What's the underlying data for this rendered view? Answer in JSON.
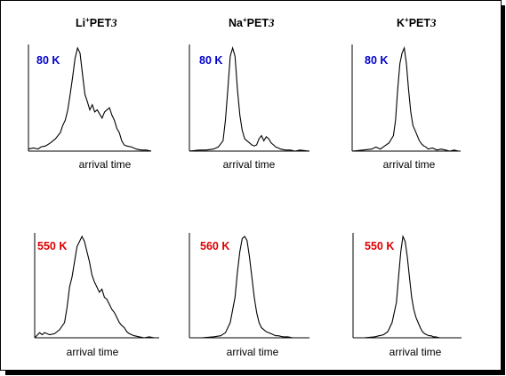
{
  "columns": [
    {
      "ion": "Li",
      "charge": "+",
      "molecule": "PET",
      "index": "3"
    },
    {
      "ion": "Na",
      "charge": "+",
      "molecule": "PET",
      "index": "3"
    },
    {
      "ion": "K",
      "charge": "+",
      "molecule": "PET",
      "index": "3"
    }
  ],
  "chart_data": [
    {
      "type": "line",
      "xlabel": "arrival time",
      "annotation": "80 K",
      "annotation_color": "#0000cc",
      "series": [
        {
          "x": [
            0,
            4,
            8,
            10,
            14,
            18,
            22,
            26,
            28,
            30,
            32,
            34,
            36,
            38,
            40,
            42,
            44,
            46,
            48,
            50,
            52,
            54,
            56,
            58,
            60,
            62,
            64,
            66,
            68,
            70,
            72,
            74,
            76,
            78,
            80,
            84,
            88,
            92,
            96,
            100
          ],
          "values": [
            0.02,
            0.03,
            0.02,
            0.04,
            0.05,
            0.08,
            0.12,
            0.18,
            0.25,
            0.3,
            0.4,
            0.55,
            0.72,
            0.9,
            1.0,
            0.95,
            0.75,
            0.55,
            0.48,
            0.4,
            0.45,
            0.38,
            0.4,
            0.36,
            0.32,
            0.38,
            0.4,
            0.42,
            0.35,
            0.3,
            0.22,
            0.18,
            0.1,
            0.06,
            0.05,
            0.04,
            0.02,
            0.01,
            0.01,
            0.0
          ]
        }
      ]
    },
    {
      "type": "line",
      "xlabel": "arrival time",
      "annotation": "80 K",
      "annotation_color": "#0000cc",
      "series": [
        {
          "x": [
            0,
            8,
            14,
            20,
            24,
            28,
            30,
            32,
            34,
            36,
            38,
            40,
            42,
            44,
            46,
            48,
            50,
            52,
            54,
            56,
            58,
            60,
            62,
            64,
            66,
            68,
            70,
            72,
            74,
            76,
            80,
            84,
            88,
            92,
            100
          ],
          "values": [
            0.0,
            0.01,
            0.01,
            0.02,
            0.04,
            0.1,
            0.3,
            0.6,
            0.92,
            1.0,
            0.92,
            0.6,
            0.35,
            0.2,
            0.12,
            0.1,
            0.08,
            0.06,
            0.05,
            0.06,
            0.12,
            0.15,
            0.1,
            0.14,
            0.12,
            0.08,
            0.06,
            0.04,
            0.03,
            0.02,
            0.01,
            0.01,
            0.0,
            0.01,
            0.0
          ]
        }
      ]
    },
    {
      "type": "line",
      "xlabel": "arrival time",
      "annotation": "80 K",
      "annotation_color": "#0000cc",
      "series": [
        {
          "x": [
            0,
            10,
            18,
            22,
            26,
            30,
            34,
            38,
            40,
            42,
            44,
            46,
            48,
            50,
            52,
            54,
            56,
            58,
            60,
            62,
            64,
            66,
            68,
            70,
            74,
            78,
            82,
            86,
            90,
            94,
            98,
            100
          ],
          "values": [
            0.0,
            0.01,
            0.02,
            0.04,
            0.02,
            0.05,
            0.08,
            0.15,
            0.3,
            0.6,
            0.85,
            0.95,
            1.0,
            0.85,
            0.6,
            0.38,
            0.25,
            0.2,
            0.15,
            0.1,
            0.07,
            0.05,
            0.04,
            0.02,
            0.03,
            0.01,
            0.02,
            0.01,
            0.0,
            0.01,
            0.0,
            0.0
          ]
        }
      ]
    },
    {
      "type": "line",
      "xlabel": "arrival time",
      "annotation": "550 K",
      "annotation_color": "#dd0000",
      "series": [
        {
          "x": [
            0,
            4,
            6,
            8,
            12,
            16,
            20,
            24,
            26,
            28,
            30,
            32,
            34,
            36,
            38,
            40,
            42,
            44,
            46,
            48,
            50,
            52,
            54,
            56,
            58,
            60,
            62,
            64,
            66,
            68,
            70,
            72,
            74,
            76,
            78,
            80,
            84,
            88,
            92,
            96,
            100
          ],
          "values": [
            0.0,
            0.05,
            0.03,
            0.05,
            0.03,
            0.04,
            0.08,
            0.15,
            0.3,
            0.5,
            0.6,
            0.75,
            0.9,
            0.95,
            1.0,
            0.95,
            0.85,
            0.75,
            0.62,
            0.55,
            0.5,
            0.45,
            0.48,
            0.4,
            0.38,
            0.33,
            0.28,
            0.25,
            0.2,
            0.15,
            0.12,
            0.1,
            0.06,
            0.04,
            0.03,
            0.02,
            0.01,
            0.0,
            0.01,
            0.0,
            0.0
          ]
        }
      ]
    },
    {
      "type": "line",
      "xlabel": "arrival time",
      "annotation": "560 K",
      "annotation_color": "#dd0000",
      "series": [
        {
          "x": [
            0,
            10,
            20,
            26,
            30,
            34,
            38,
            40,
            42,
            44,
            46,
            48,
            50,
            52,
            54,
            56,
            58,
            60,
            62,
            64,
            66,
            68,
            70,
            72,
            74,
            78,
            82,
            86,
            90,
            94,
            100
          ],
          "values": [
            0.0,
            0.0,
            0.01,
            0.02,
            0.05,
            0.15,
            0.4,
            0.65,
            0.85,
            0.98,
            1.0,
            0.96,
            0.8,
            0.6,
            0.4,
            0.25,
            0.15,
            0.1,
            0.08,
            0.06,
            0.05,
            0.04,
            0.03,
            0.02,
            0.02,
            0.01,
            0.01,
            0.0,
            0.0,
            0.0,
            0.0
          ]
        }
      ]
    },
    {
      "type": "line",
      "xlabel": "arrival time",
      "annotation": "550 K",
      "annotation_color": "#dd0000",
      "series": [
        {
          "x": [
            0,
            10,
            20,
            24,
            28,
            32,
            36,
            40,
            42,
            44,
            46,
            48,
            50,
            52,
            54,
            56,
            58,
            60,
            62,
            64,
            66,
            68,
            70,
            72,
            74,
            76,
            80,
            84,
            88,
            92,
            96,
            100
          ],
          "values": [
            0.0,
            0.0,
            0.01,
            0.02,
            0.03,
            0.06,
            0.15,
            0.35,
            0.6,
            0.85,
            1.0,
            0.95,
            0.8,
            0.6,
            0.4,
            0.28,
            0.2,
            0.15,
            0.1,
            0.06,
            0.04,
            0.03,
            0.02,
            0.02,
            0.01,
            0.01,
            0.0,
            0.0,
            0.0,
            0.0,
            0.0,
            0.0
          ]
        }
      ]
    }
  ]
}
